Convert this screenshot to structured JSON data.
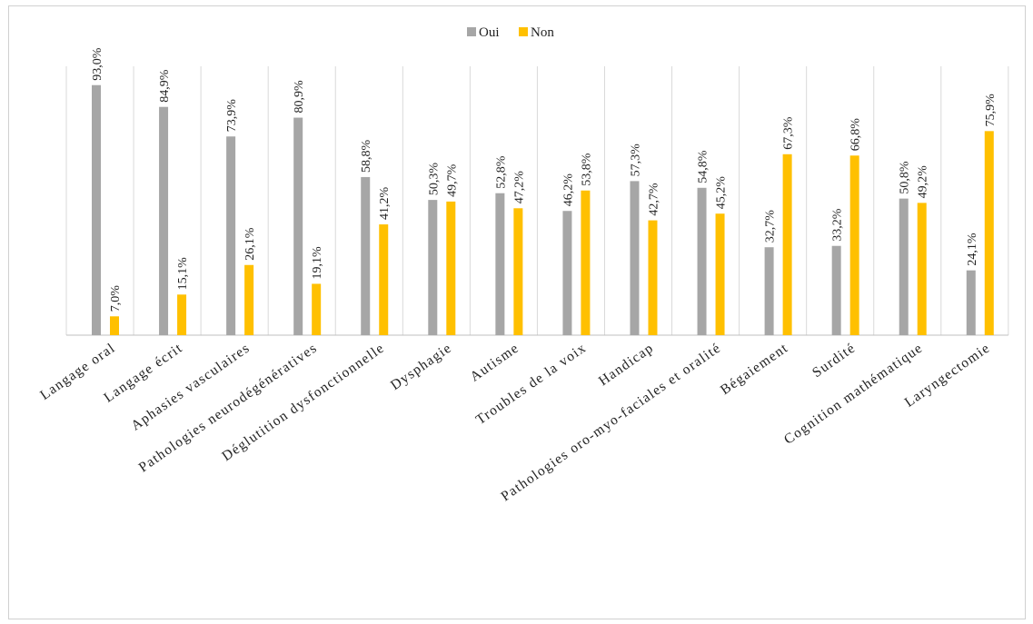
{
  "chart_data": {
    "type": "bar",
    "title": "",
    "xlabel": "",
    "ylabel": "",
    "ylim": [
      0,
      100
    ],
    "grid": "vertical category separators",
    "legend_position": "top-center",
    "categories": [
      "Langage oral",
      "Langage écrit",
      "Aphasies vasculaires",
      "Pathologies neurodégénératives",
      "Déglutition dysfonctionnelle",
      "Dysphagie",
      "Autisme",
      "Troubles de la voix",
      "Handicap",
      "Pathologies oro-myo-faciales et oralité",
      "Bégaiement",
      "Surdité",
      "Cognition mathématique",
      "Laryngectomie"
    ],
    "series": [
      {
        "name": "Oui",
        "color": "#a6a6a6",
        "values": [
          93.0,
          84.9,
          73.9,
          80.9,
          58.8,
          50.3,
          52.8,
          46.2,
          57.3,
          54.8,
          32.7,
          33.2,
          50.8,
          24.1
        ],
        "labels": [
          "93,0%",
          "84,9%",
          "73,9%",
          "80,9%",
          "58,8%",
          "50,3%",
          "52,8%",
          "46,2%",
          "57,3%",
          "54,8%",
          "32,7%",
          "33,2%",
          "50,8%",
          "24,1%"
        ]
      },
      {
        "name": "Non",
        "color": "#ffc000",
        "values": [
          7.0,
          15.1,
          26.1,
          19.1,
          41.2,
          49.7,
          47.2,
          53.8,
          42.7,
          45.2,
          67.3,
          66.8,
          49.2,
          75.9
        ],
        "labels": [
          "7,0%",
          "15,1%",
          "26,1%",
          "19,1%",
          "41,2%",
          "49,7%",
          "47,2%",
          "53,8%",
          "42,7%",
          "45,2%",
          "67,3%",
          "66,8%",
          "49,2%",
          "75,9%"
        ]
      }
    ]
  }
}
